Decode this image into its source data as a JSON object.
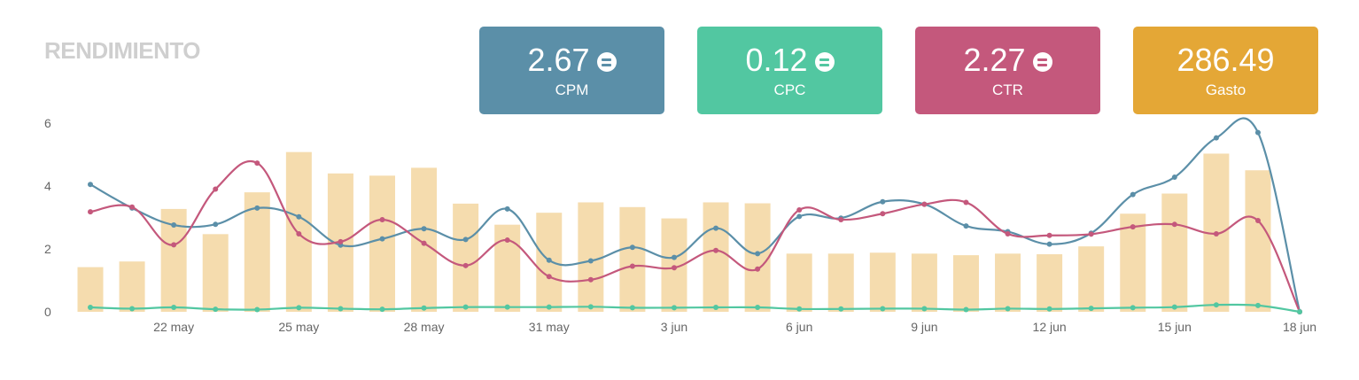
{
  "title": "RENDIMIENTO",
  "kpis": [
    {
      "value": "2.67",
      "label": "CPM",
      "color": "#5b8fa8",
      "badge": true
    },
    {
      "value": "0.12",
      "label": "CPC",
      "color": "#52c7a1",
      "badge": true
    },
    {
      "value": "2.27",
      "label": "CTR",
      "color": "#c4587c",
      "badge": true
    },
    {
      "value": "286.49",
      "label": "Gasto",
      "color": "#e4a736",
      "badge": false
    }
  ],
  "chart_data": {
    "type": "bar",
    "ylim": [
      0,
      6
    ],
    "yticks": [
      "0",
      "2",
      "4",
      "6"
    ],
    "categories": [
      "20 may",
      "21 may",
      "22 may",
      "23 may",
      "24 may",
      "25 may",
      "26 may",
      "27 may",
      "28 may",
      "29 may",
      "30 may",
      "31 may",
      "1 jun",
      "2 jun",
      "3 jun",
      "4 jun",
      "5 jun",
      "6 jun",
      "7 jun",
      "8 jun",
      "9 jun",
      "10 jun",
      "11 jun",
      "12 jun",
      "13 jun",
      "14 jun",
      "15 jun",
      "16 jun",
      "17 jun",
      "18 jun"
    ],
    "xtick_labels": [
      "22 may",
      "25 may",
      "28 may",
      "31 may",
      "3 jun",
      "6 jun",
      "9 jun",
      "12 jun",
      "15 jun",
      "18 jun"
    ],
    "xtick_indices": [
      2,
      5,
      8,
      11,
      14,
      17,
      20,
      23,
      26,
      29
    ],
    "bars": {
      "color": "#f5dcae",
      "values": [
        1.42,
        1.6,
        3.27,
        2.47,
        3.8,
        5.08,
        4.4,
        4.33,
        4.58,
        3.44,
        2.77,
        3.15,
        3.48,
        3.33,
        2.97,
        3.48,
        3.45,
        1.85,
        1.85,
        1.88,
        1.85,
        1.8,
        1.85,
        1.83,
        2.08,
        3.12,
        3.76,
        5.03,
        4.5,
        0
      ]
    },
    "series": [
      {
        "color": "#5b8fa8",
        "values": [
          4.05,
          3.3,
          2.76,
          2.78,
          3.3,
          3.02,
          2.12,
          2.32,
          2.64,
          2.3,
          3.27,
          1.64,
          1.62,
          2.05,
          1.73,
          2.66,
          1.85,
          3.03,
          2.98,
          3.5,
          3.42,
          2.73,
          2.55,
          2.15,
          2.5,
          3.73,
          4.28,
          5.53,
          5.7,
          0
        ]
      },
      {
        "color": "#c4587c",
        "values": [
          3.18,
          3.33,
          2.13,
          3.9,
          4.73,
          2.48,
          2.23,
          2.93,
          2.18,
          1.47,
          2.28,
          1.12,
          1.02,
          1.45,
          1.4,
          1.95,
          1.36,
          3.24,
          2.93,
          3.12,
          3.42,
          3.48,
          2.48,
          2.43,
          2.47,
          2.7,
          2.78,
          2.48,
          2.9,
          0
        ]
      },
      {
        "color": "#52c7a1",
        "values": [
          0.14,
          0.1,
          0.14,
          0.08,
          0.07,
          0.13,
          0.1,
          0.08,
          0.12,
          0.15,
          0.15,
          0.15,
          0.16,
          0.13,
          0.13,
          0.14,
          0.14,
          0.09,
          0.09,
          0.1,
          0.1,
          0.07,
          0.1,
          0.09,
          0.11,
          0.13,
          0.15,
          0.22,
          0.2,
          0
        ]
      }
    ]
  }
}
